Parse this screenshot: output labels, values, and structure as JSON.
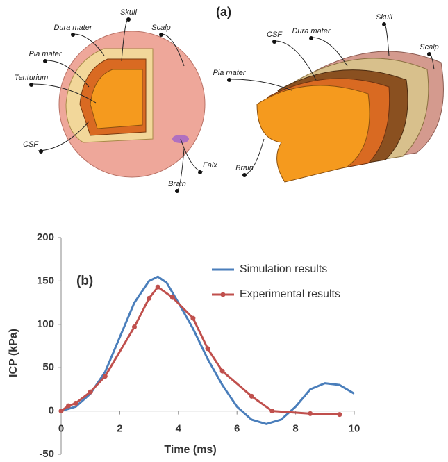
{
  "illustration": {
    "label": "(a)",
    "left_labels": [
      "Skull",
      "Dura mater",
      "Scalp",
      "Pia mater",
      "Tenturium",
      "CSF",
      "Falx",
      "Brain"
    ],
    "right_labels": [
      "CSF",
      "Dura mater",
      "Skull",
      "Scalp",
      "Pia mater",
      "Brain"
    ]
  },
  "chart_data": {
    "type": "line",
    "panel_label": "(b)",
    "x_label": "Time (ms)",
    "y_label": "ICP (kPa)",
    "xlim": [
      0,
      10
    ],
    "xticks": [
      0,
      2,
      4,
      6,
      8,
      10
    ],
    "ylim": [
      -50,
      200
    ],
    "yticks": [
      -50,
      0,
      50,
      100,
      150,
      200
    ],
    "legend": "upper right",
    "series": [
      {
        "name": "Simulation results",
        "color": "#4a7ebb",
        "marker": false,
        "x": [
          0,
          0.5,
          1,
          1.5,
          2,
          2.5,
          3,
          3.3,
          3.6,
          4,
          4.5,
          5,
          5.5,
          6,
          6.5,
          7,
          7.5,
          8,
          8.5,
          9,
          9.5,
          10
        ],
        "values": [
          0,
          5,
          20,
          45,
          85,
          125,
          150,
          155,
          148,
          125,
          95,
          60,
          30,
          5,
          -10,
          -15,
          -10,
          5,
          25,
          32,
          30,
          20
        ]
      },
      {
        "name": "Experimental results",
        "color": "#c0504d",
        "marker": true,
        "x": [
          0,
          0.25,
          0.5,
          1,
          1.5,
          2.5,
          3,
          3.3,
          3.8,
          4.5,
          5,
          5.5,
          6.5,
          7.2,
          8.5,
          9.5
        ],
        "values": [
          0,
          6,
          9,
          22,
          40,
          97,
          130,
          143,
          131,
          107,
          72,
          46,
          17,
          0,
          -3,
          -4
        ]
      }
    ]
  }
}
